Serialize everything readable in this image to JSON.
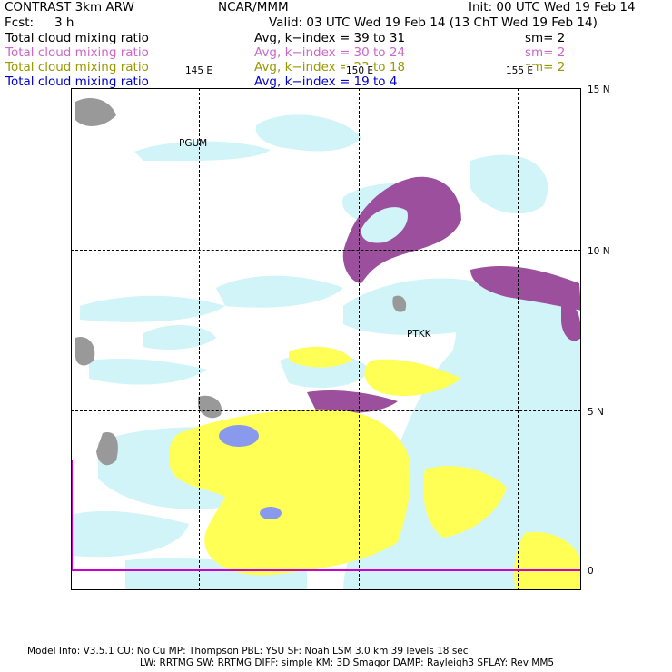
{
  "header": {
    "line1_left": "CONTRAST  3km ARW",
    "line1_center": "NCAR/MMM",
    "line1_right": "Init: 00 UTC Wed 19 Feb 14",
    "fcst_label": "Fcst:",
    "fcst_value": "3 h",
    "valid": "Valid: 03 UTC Wed 19 Feb 14 (13 ChT Wed 19 Feb 14)"
  },
  "legend": [
    {
      "field": "Total cloud mixing ratio",
      "range": "Avg, k−index =  39 to  31",
      "sm": "sm= 2",
      "color": "#000000"
    },
    {
      "field": "Total cloud mixing ratio",
      "range": "Avg, k−index =  30 to  24",
      "sm": "sm= 2",
      "color": "#cc66cc"
    },
    {
      "field": "Total cloud mixing ratio",
      "range": "Avg, k−index =  23 to  18",
      "sm": "sm= 2",
      "color": "#999900"
    },
    {
      "field": "Total cloud mixing ratio",
      "range": "Avg, k−index =  19 to   4",
      "sm": "",
      "color": "#0000cc"
    }
  ],
  "map": {
    "lon_labels": [
      "145 E",
      "150 E",
      "155 E"
    ],
    "lat_labels": [
      "15 N",
      "10 N",
      "5 N",
      "0"
    ],
    "stations": [
      "PGUM",
      "PTKK"
    ],
    "fill_colors": {
      "level1": "#999999",
      "level2": "#9c4f9c",
      "level3": "#ffff55",
      "level4": "#d0f4f8",
      "level5": "#8899ee"
    }
  },
  "footer": {
    "line1": "Model Info: V3.5.1    CU: No Cu    MP: Thompson    PBL: YSU      SF: Noah LSM     3.0 km   39 levels   18 sec",
    "line2": "LW: RRTMG    SW: RRTMG   DIFF: simple KM: 3D Smagor DAMP: Rayleigh3  SFLAY: Rev MM5"
  }
}
